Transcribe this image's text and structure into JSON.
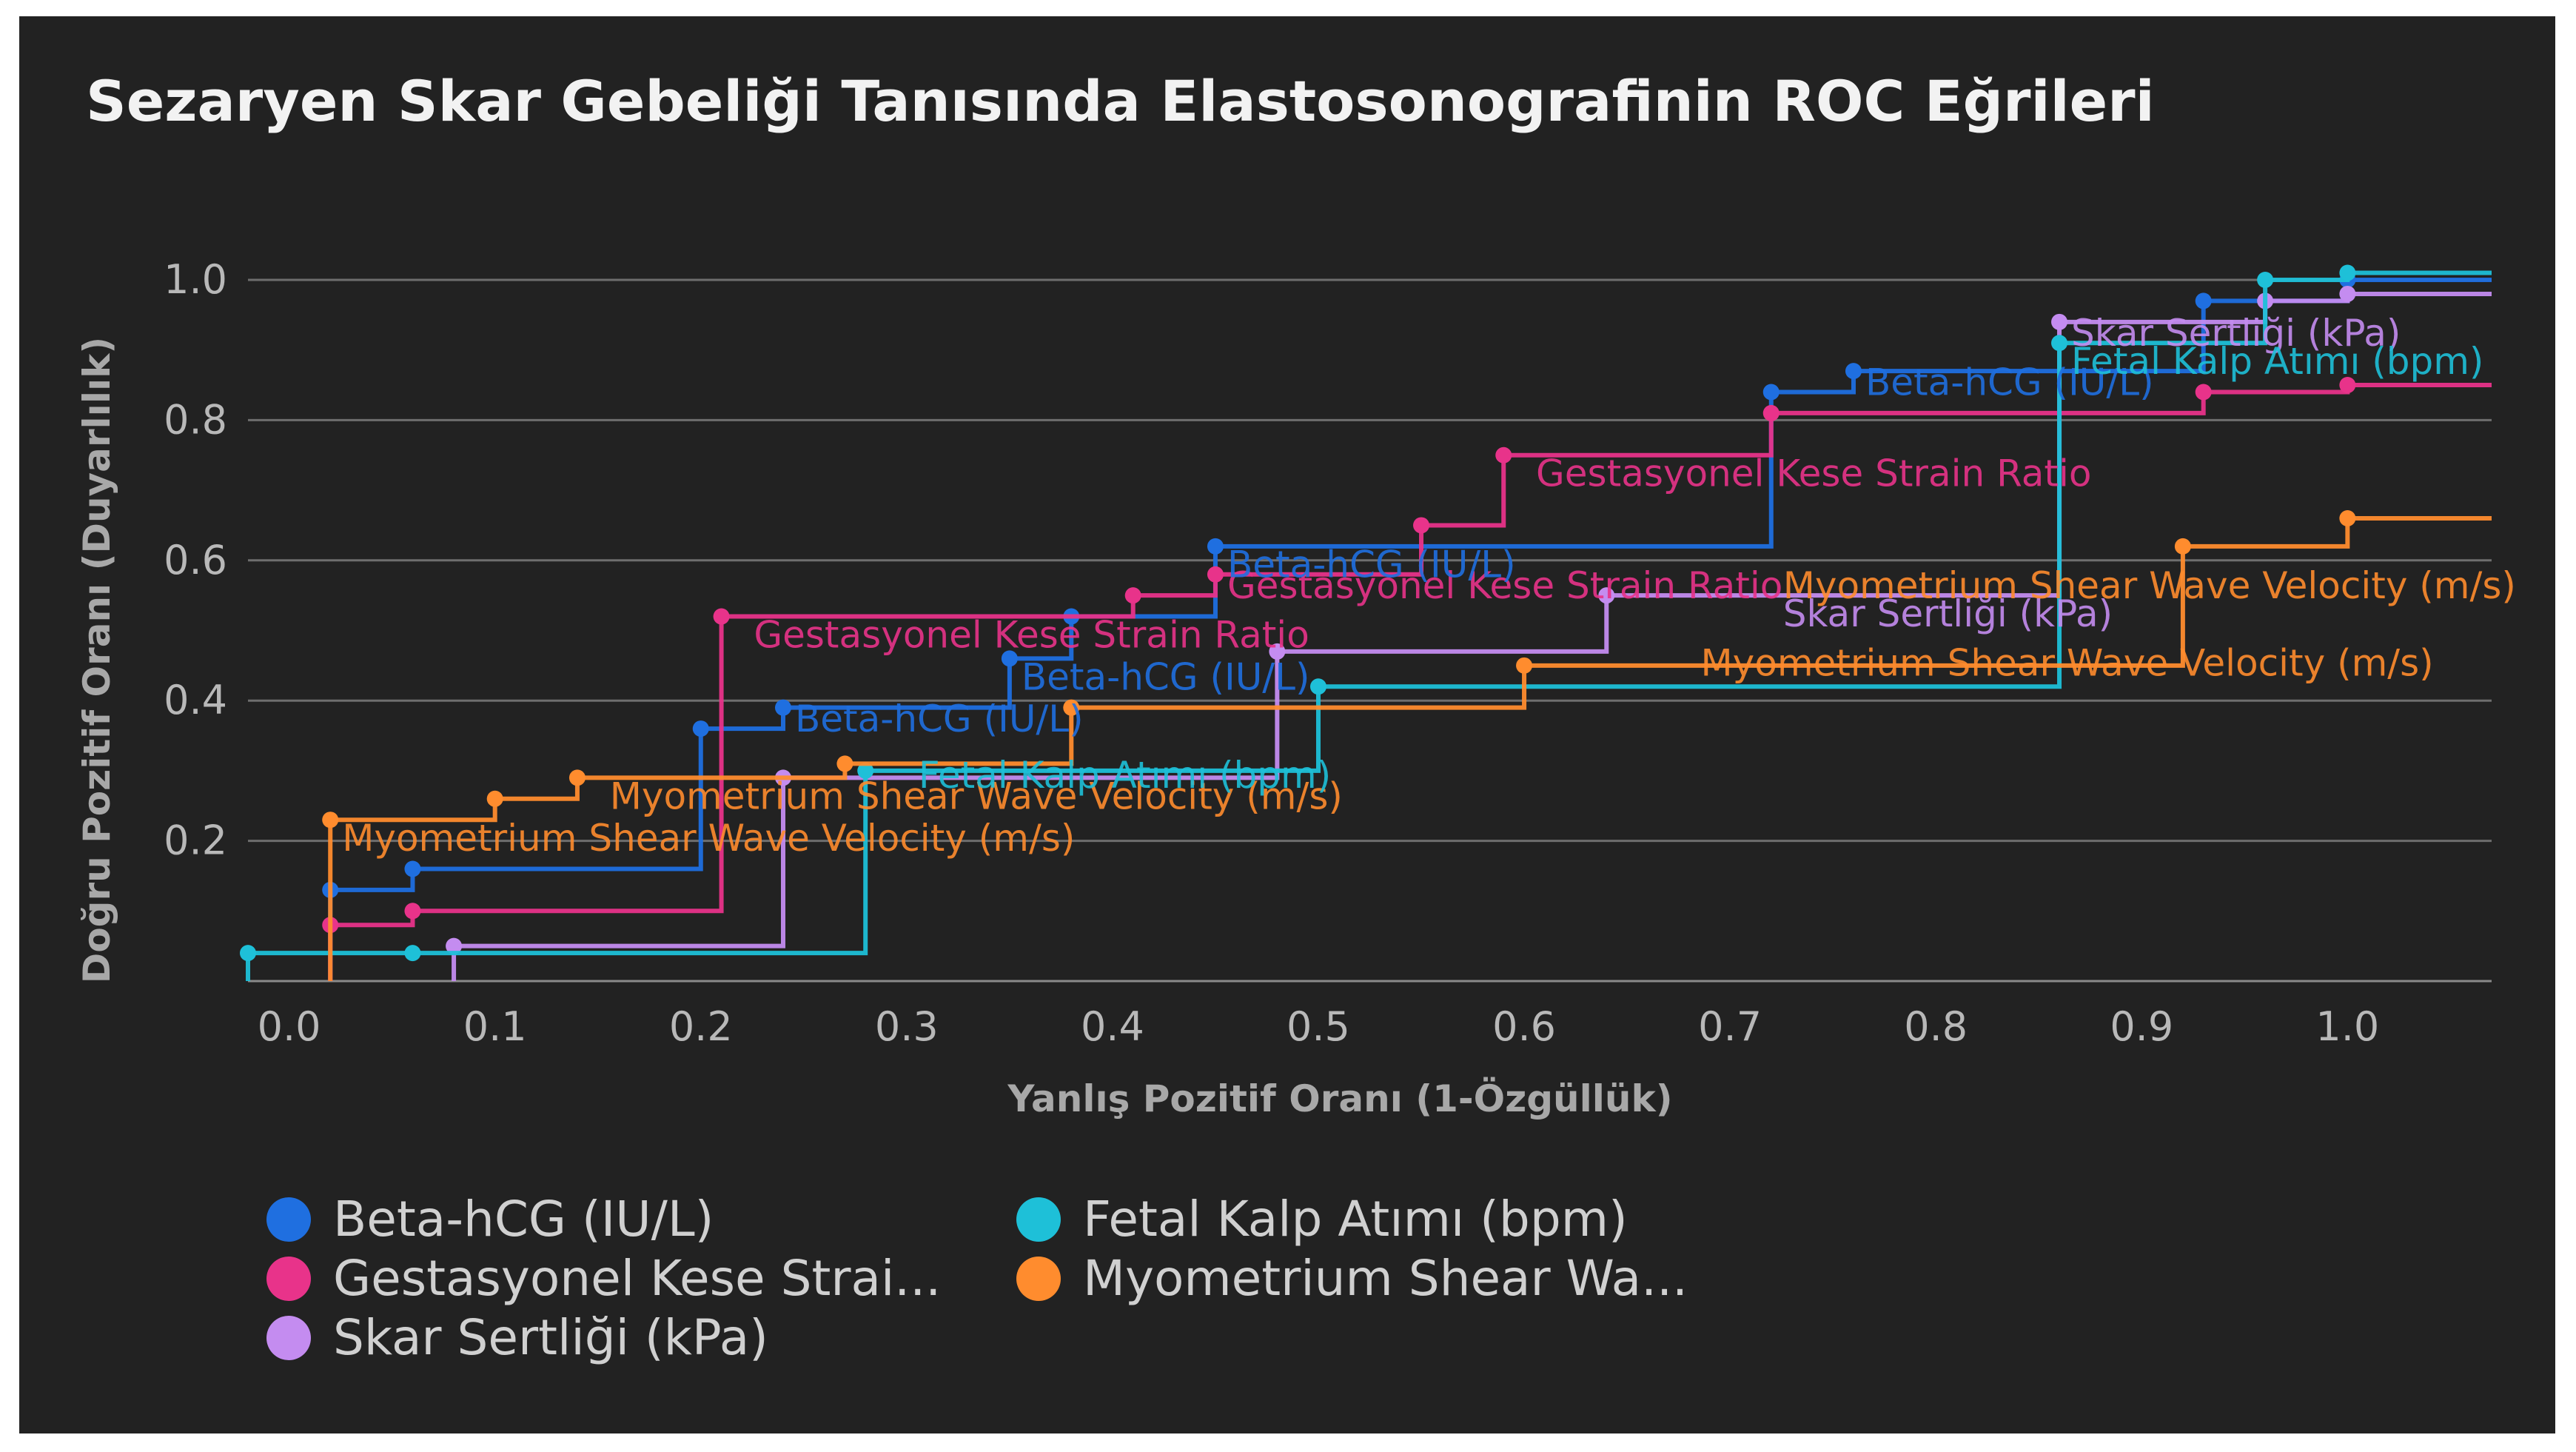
{
  "chart_data": {
    "type": "line",
    "title": "Sezaryen Skar Gebeliği Tanısında Elastosonografinin ROC Eğrileri",
    "xlabel": "Yanlış Pozitif Oranı (1-Özgüllük)",
    "ylabel": "Doğru Pozitif Oranı (Duyarlılık)",
    "xlim": [
      -0.02,
      1.07
    ],
    "ylim": [
      0.0,
      1.0
    ],
    "xticks": [
      "0.0",
      "0.1",
      "0.2",
      "0.3",
      "0.4",
      "0.5",
      "0.6",
      "0.7",
      "0.8",
      "0.9",
      "1.0"
    ],
    "xtick_values": [
      0.0,
      0.1,
      0.2,
      0.3,
      0.4,
      0.5,
      0.6,
      0.7,
      0.8,
      0.9,
      1.0
    ],
    "yticks": [
      "0.2",
      "0.4",
      "0.6",
      "0.8",
      "1.0"
    ],
    "ytick_values": [
      0.2,
      0.4,
      0.6,
      0.8,
      1.0
    ],
    "grid": true,
    "legend_position": "bottom-left",
    "series": [
      {
        "name": "Beta-hCG (IU/L)",
        "color": "#1f6fe0",
        "x": [
          0.02,
          0.06,
          0.2,
          0.24,
          0.35,
          0.38,
          0.45,
          0.72,
          0.76,
          0.93,
          1.0
        ],
        "y": [
          0.13,
          0.16,
          0.36,
          0.39,
          0.46,
          0.52,
          0.62,
          0.84,
          0.87,
          0.97,
          1.0
        ]
      },
      {
        "name": "Gestasyonel Kese Strain Ratio",
        "color": "#e8338a",
        "x": [
          0.02,
          0.06,
          0.21,
          0.41,
          0.45,
          0.55,
          0.59,
          0.72,
          0.93,
          1.0
        ],
        "y": [
          0.08,
          0.1,
          0.52,
          0.55,
          0.58,
          0.65,
          0.75,
          0.81,
          0.84,
          0.85
        ]
      },
      {
        "name": "Skar Sertliği (kPa)",
        "color": "#c48cf0",
        "x": [
          0.08,
          0.24,
          0.48,
          0.64,
          0.86,
          0.96,
          1.0
        ],
        "y": [
          0.05,
          0.29,
          0.47,
          0.55,
          0.94,
          0.97,
          0.98
        ]
      },
      {
        "name": "Fetal Kalp Atımı (bpm)",
        "color": "#1ec0d8",
        "x": [
          -0.02,
          0.06,
          0.28,
          0.5,
          0.86,
          0.96,
          1.0
        ],
        "y": [
          0.04,
          0.04,
          0.3,
          0.42,
          0.91,
          1.0,
          1.01
        ]
      },
      {
        "name": "Myometrium Shear Wave Velocity (m/s)",
        "color": "#ff8c2e",
        "x": [
          0.02,
          0.1,
          0.14,
          0.27,
          0.38,
          0.6,
          0.92,
          1.0
        ],
        "y": [
          0.23,
          0.26,
          0.29,
          0.31,
          0.39,
          0.45,
          0.62,
          0.66
        ]
      }
    ],
    "annotations": [
      {
        "text": "Gestasyonel Kese Strain Ratio",
        "x": 0.22,
        "y": 0.48,
        "color": "#e8338a"
      },
      {
        "text": "Gestasyonel Kese Strain Ratio",
        "x": 0.6,
        "y": 0.71,
        "color": "#e8338a"
      },
      {
        "text": "Gestasyonel Kese Strain Ratio",
        "x": 0.45,
        "y": 0.55,
        "color": "#e8338a"
      },
      {
        "text": "Myometrium Shear Wave Velocity (m/s)",
        "x": 0.15,
        "y": 0.25,
        "color": "#ff8c2e"
      },
      {
        "text": "Myometrium Shear Wave Velocity (m/s)",
        "x": 0.02,
        "y": 0.19,
        "color": "#ff8c2e"
      },
      {
        "text": "Myometrium Shear Wave Velocity (m/s)",
        "x": 0.68,
        "y": 0.44,
        "color": "#ff8c2e"
      },
      {
        "text": "Myometrium Shear Wave Velocity (m/s)",
        "x": 0.72,
        "y": 0.55,
        "color": "#ff8c2e"
      },
      {
        "text": "Beta-hCG (IU/L)",
        "x": 0.76,
        "y": 0.84,
        "color": "#1f6fe0"
      },
      {
        "text": "Beta-hCG (IU/L)",
        "x": 0.24,
        "y": 0.36,
        "color": "#1f6fe0"
      },
      {
        "text": "Beta-hCG (IU/L)",
        "x": 0.35,
        "y": 0.42,
        "color": "#1f6fe0"
      },
      {
        "text": "Beta-hCG (IU/L)",
        "x": 0.45,
        "y": 0.58,
        "color": "#1f6fe0"
      },
      {
        "text": "Skar Sertliği (kPa)",
        "x": 0.86,
        "y": 0.91,
        "color": "#c48cf0"
      },
      {
        "text": "Skar Sertliği (kPa)",
        "x": 0.72,
        "y": 0.51,
        "color": "#c48cf0"
      },
      {
        "text": "Fetal Kalp Atımı (bpm)",
        "x": 0.86,
        "y": 0.87,
        "color": "#1ec0d8"
      },
      {
        "text": "Fetal Kalp Atımı (bpm)",
        "x": 0.3,
        "y": 0.28,
        "color": "#1ec0d8"
      }
    ]
  },
  "legend": {
    "items": [
      {
        "label": "Beta-hCG (IU/L)",
        "color": "#1f6fe0"
      },
      {
        "label": "Fetal Kalp Atımı (bpm)",
        "color": "#1ec0d8"
      },
      {
        "label": "Gestasyonel Kese Strai...",
        "color": "#e8338a"
      },
      {
        "label": "Myometrium Shear Wa...",
        "color": "#ff8c2e"
      },
      {
        "label": "Skar Sertliği (kPa)",
        "color": "#c48cf0"
      }
    ]
  }
}
